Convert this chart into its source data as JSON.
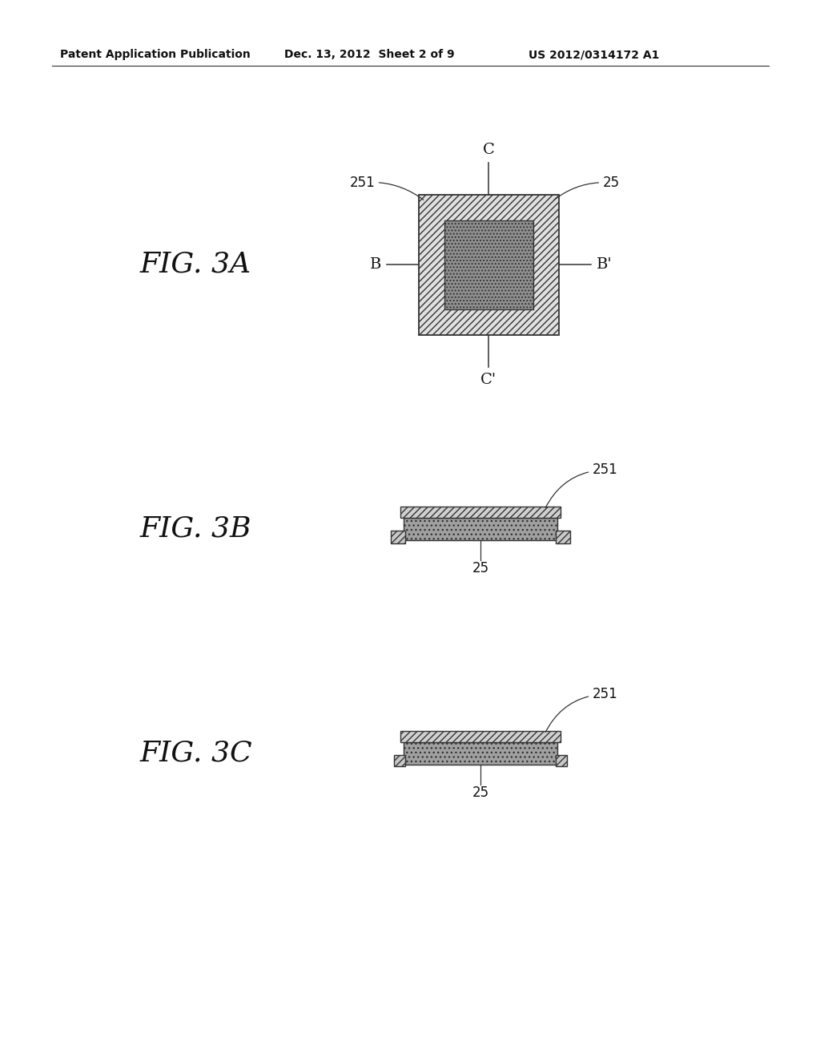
{
  "bg_color": "#ffffff",
  "header_text": "Patent Application Publication",
  "header_date": "Dec. 13, 2012  Sheet 2 of 9",
  "header_patent": "US 2012/0314172 A1",
  "fig3a_label": "FIG. 3A",
  "fig3b_label": "FIG. 3B",
  "fig3c_label": "FIG. 3C",
  "line_color": "#333333",
  "text_color": "#111111"
}
